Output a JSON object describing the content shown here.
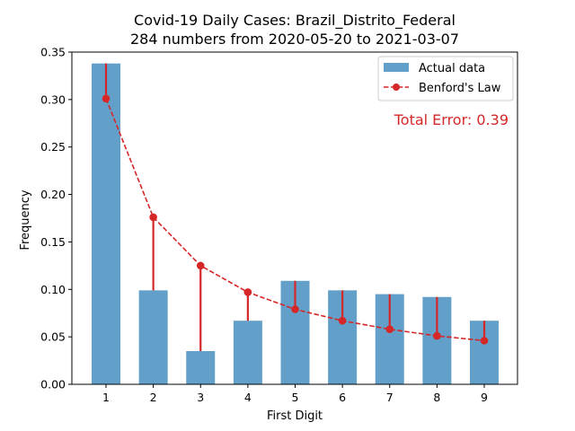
{
  "chart_data": {
    "type": "bar",
    "title_line1": "Covid-19 Daily Cases: Brazil_Distrito_Federal",
    "title_line2": "284 numbers from 2020-05-20 to 2021-03-07",
    "xlabel": "First Digit",
    "ylabel": "Frequency",
    "categories": [
      "1",
      "2",
      "3",
      "4",
      "5",
      "6",
      "7",
      "8",
      "9"
    ],
    "series": [
      {
        "name": "Actual data",
        "values": [
          0.338,
          0.099,
          0.035,
          0.067,
          0.109,
          0.099,
          0.095,
          0.092,
          0.067
        ],
        "color": "#1f77b4"
      },
      {
        "name": "Benford's Law",
        "values": [
          0.301,
          0.176,
          0.125,
          0.097,
          0.079,
          0.067,
          0.058,
          0.051,
          0.046
        ],
        "color": "#d62728"
      }
    ],
    "ylim": [
      0,
      0.35
    ],
    "yticks": [
      "0.00",
      "0.05",
      "0.10",
      "0.15",
      "0.20",
      "0.25",
      "0.30",
      "0.35"
    ],
    "annotation": "Total Error: 0.39",
    "legend_position": "top-right",
    "grid": false
  }
}
